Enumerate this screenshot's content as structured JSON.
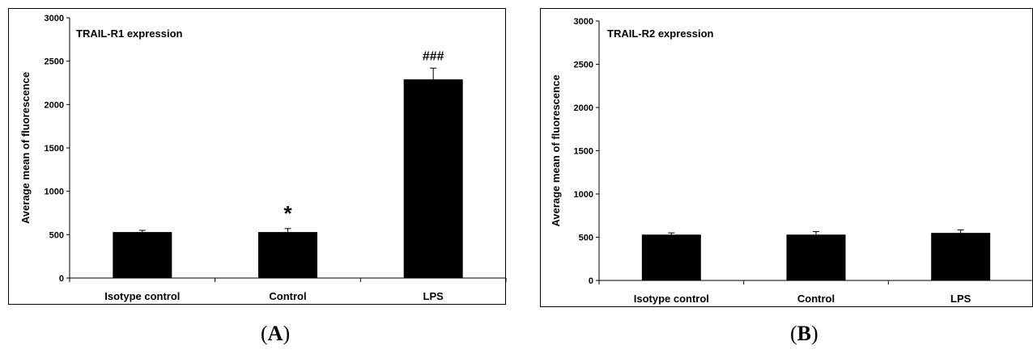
{
  "chart_data": [
    {
      "type": "bar",
      "title": "TRAIL-R1 expression",
      "panel_label": "A",
      "ylabel": "Average mean of fluorescence",
      "xlabel": "",
      "ylim": [
        0,
        3000
      ],
      "yticks": [
        0,
        500,
        1000,
        1500,
        2000,
        2500,
        3000
      ],
      "categories": [
        "Isotype control",
        "Control",
        "LPS"
      ],
      "values": [
        530,
        530,
        2290
      ],
      "errors": [
        20,
        40,
        130
      ],
      "annotations": [
        "",
        "*",
        "###"
      ],
      "grid": false,
      "legend": "none",
      "bar_color": "#000000"
    },
    {
      "type": "bar",
      "title": "TRAIL-R2 expression",
      "panel_label": "B",
      "ylabel": "Average mean of fluorescence",
      "xlabel": "",
      "ylim": [
        0,
        3000
      ],
      "yticks": [
        0,
        500,
        1000,
        1500,
        2000,
        2500,
        3000
      ],
      "categories": [
        "Isotype control",
        "Control",
        "LPS"
      ],
      "values": [
        530,
        530,
        550
      ],
      "errors": [
        20,
        35,
        35
      ],
      "annotations": [
        "",
        "",
        ""
      ],
      "grid": false,
      "legend": "none",
      "bar_color": "#000000"
    }
  ]
}
